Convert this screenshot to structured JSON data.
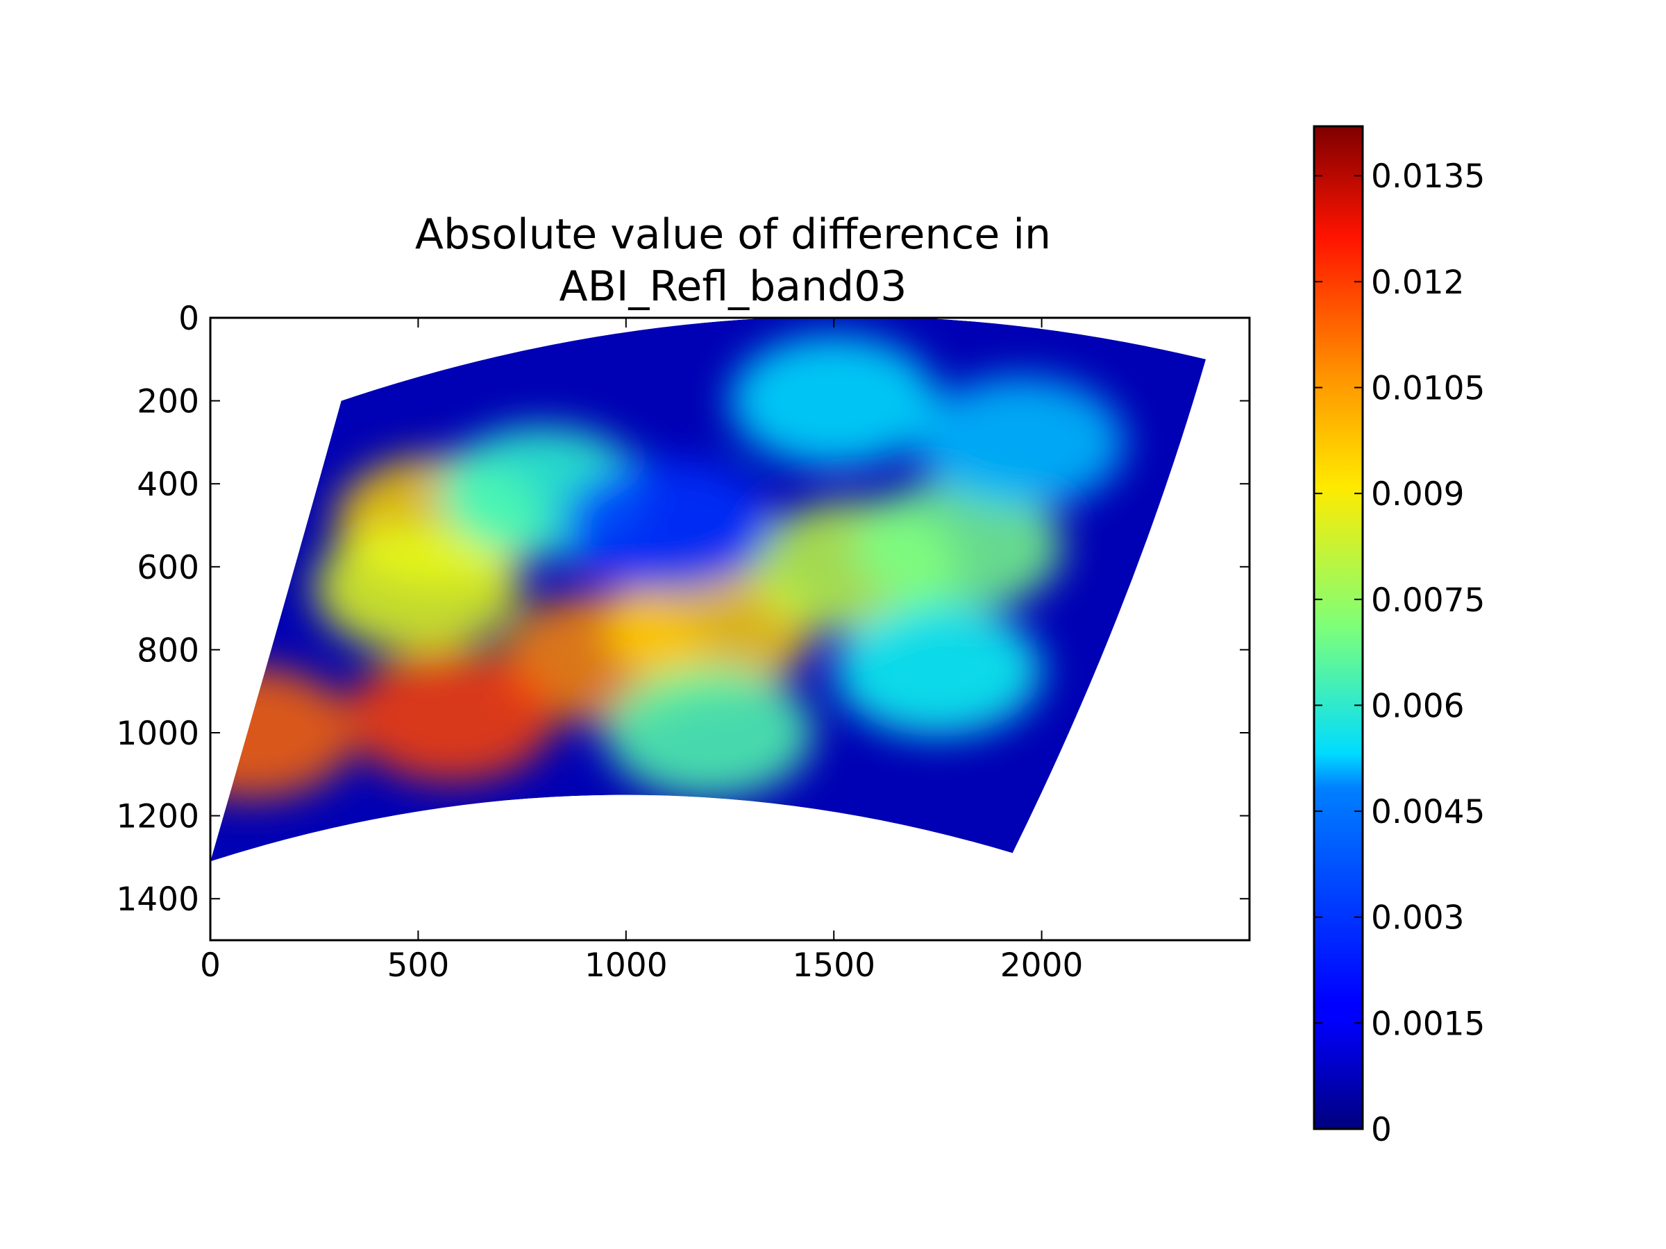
{
  "chart_data": {
    "type": "heatmap",
    "title_lines": [
      "Absolute value of difference in",
      "ABI_Refl_band03"
    ],
    "xlabel": "",
    "ylabel": "",
    "xlim": [
      0,
      2500
    ],
    "ylim": [
      1500,
      0
    ],
    "x_ticks": [
      0,
      500,
      1000,
      1500,
      2000
    ],
    "x_tick_labels": [
      "0",
      "500",
      "1000",
      "1500",
      "2000"
    ],
    "y_ticks": [
      0,
      200,
      400,
      600,
      800,
      1000,
      1200,
      1400
    ],
    "y_tick_labels": [
      "0",
      "200",
      "400",
      "600",
      "800",
      "1000",
      "1200",
      "1400"
    ],
    "colormap": "jet",
    "colorbar": {
      "range": [
        0,
        0.0142
      ],
      "ticks": [
        0,
        0.0015,
        0.003,
        0.0045,
        0.006,
        0.0075,
        0.009,
        0.0105,
        0.012,
        0.0135
      ],
      "tick_labels": [
        "0",
        "0.0015",
        "0.003",
        "0.0045",
        "0.006",
        "0.0075",
        "0.009",
        "0.0105",
        "0.012",
        "0.0135"
      ]
    },
    "data_footprint": {
      "top_left": [
        315,
        200
      ],
      "top_right": [
        2395,
        100
      ],
      "bottom_right": [
        1930,
        1290
      ],
      "bottom_left": [
        0,
        1310
      ],
      "top_apex_y": 0,
      "bottom_apex_y": 1150
    },
    "features": [
      {
        "x": 950,
        "y": 820,
        "value": 0.0105
      },
      {
        "x": 1200,
        "y": 750,
        "value": 0.0095
      },
      {
        "x": 1550,
        "y": 600,
        "value": 0.008
      },
      {
        "x": 1800,
        "y": 550,
        "value": 0.007
      },
      {
        "x": 550,
        "y": 490,
        "value": 0.0095
      },
      {
        "x": 500,
        "y": 650,
        "value": 0.0085
      },
      {
        "x": 800,
        "y": 420,
        "value": 0.006
      },
      {
        "x": 1500,
        "y": 200,
        "value": 0.005
      },
      {
        "x": 1950,
        "y": 300,
        "value": 0.0045
      },
      {
        "x": 1750,
        "y": 850,
        "value": 0.0055
      },
      {
        "x": 1200,
        "y": 1000,
        "value": 0.0065
      },
      {
        "x": 100,
        "y": 1000,
        "value": 0.011
      },
      {
        "x": 580,
        "y": 960,
        "value": 0.0115
      },
      {
        "x": 1100,
        "y": 500,
        "value": 0.0025
      }
    ]
  }
}
